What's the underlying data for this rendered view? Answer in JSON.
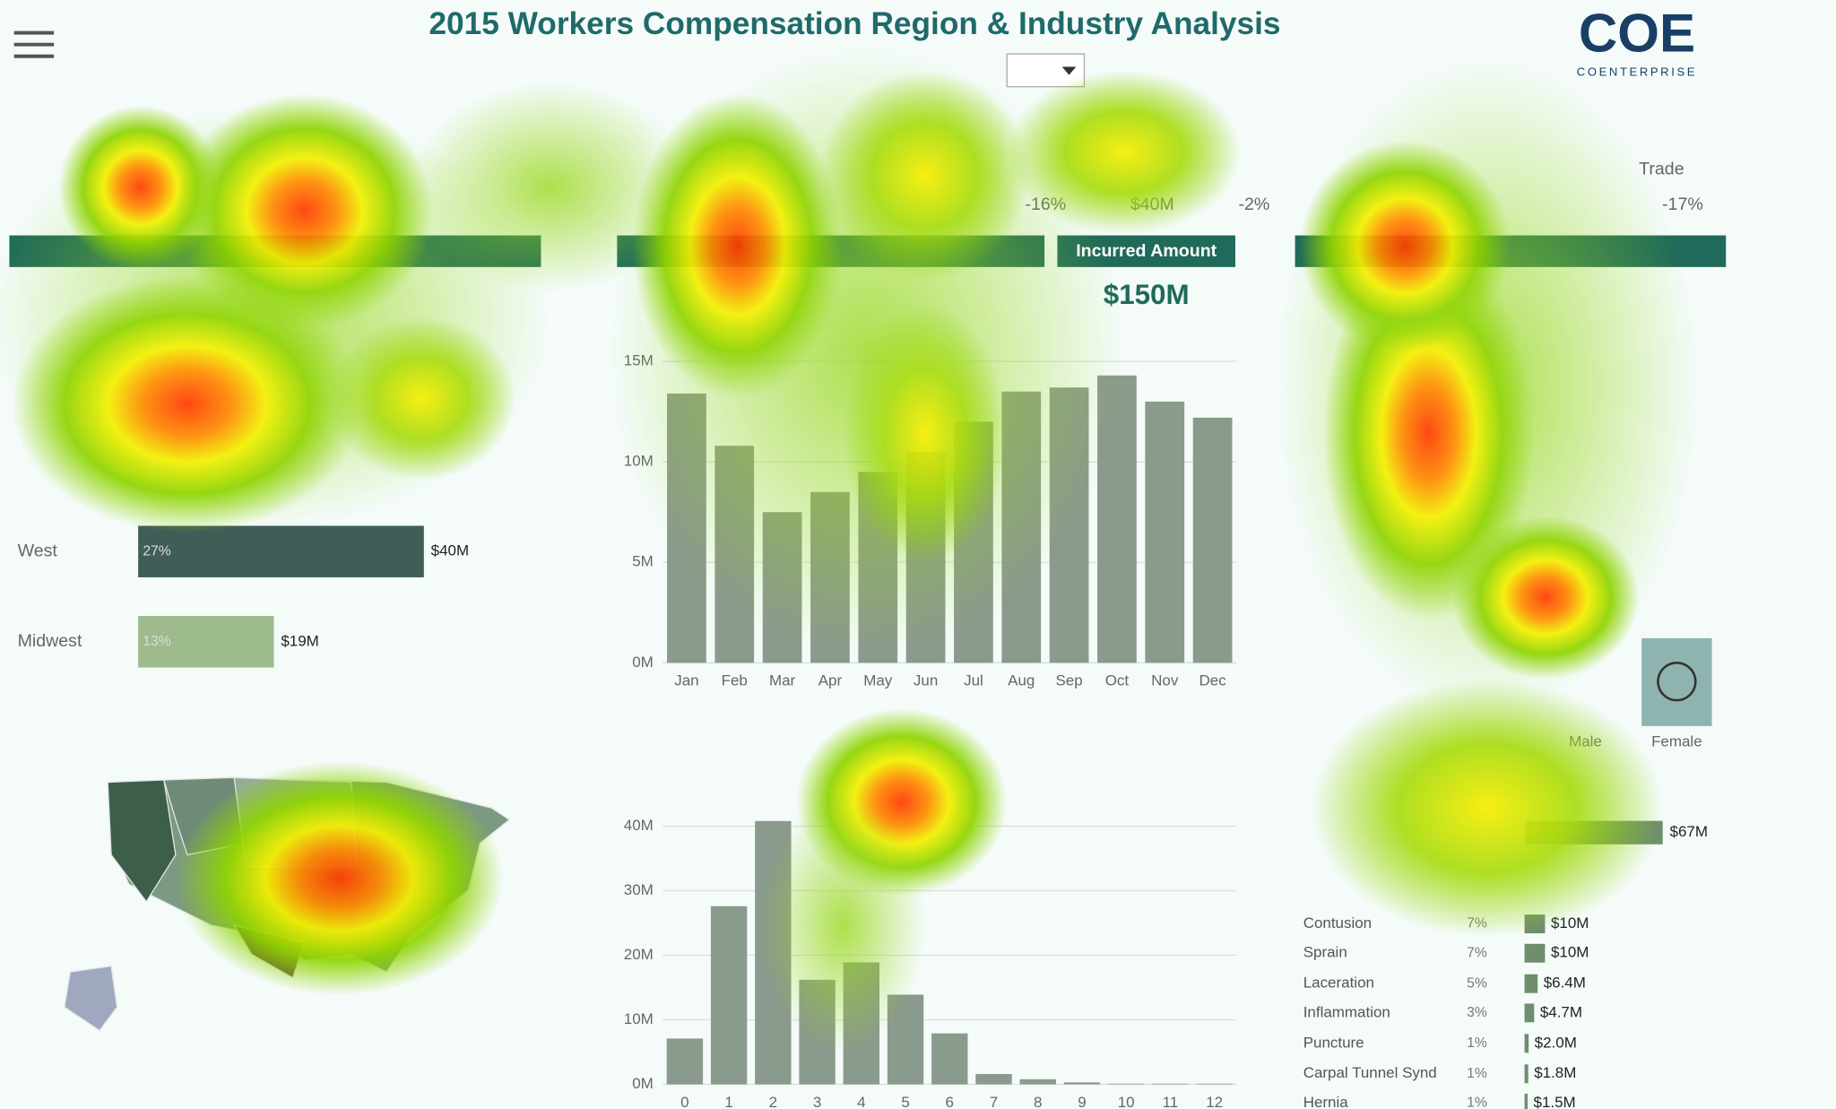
{
  "header": {
    "title": "2015 Workers Compensation Region & Industry Analysis",
    "logo": "COE",
    "logo_sub": "COENTERPRISE"
  },
  "kpis": [
    "-16%",
    "$40M",
    "-2%",
    "Trade",
    "-17%"
  ],
  "incurred": {
    "label": "Incurred Amount",
    "value": "$150M"
  },
  "monthly": {
    "type": "bar",
    "categories": [
      "Jan",
      "Feb",
      "Mar",
      "Apr",
      "May",
      "Jun",
      "Jul",
      "Aug",
      "Sep",
      "Oct",
      "Nov",
      "Dec"
    ],
    "values": [
      13.4,
      10.8,
      7.5,
      8.5,
      9.5,
      10.5,
      12.0,
      13.5,
      13.7,
      14.3,
      13.0,
      12.2
    ],
    "color": "#8a9a8c",
    "ylim": [
      0,
      15.5
    ],
    "yticks": [
      {
        "value": 0,
        "label": "0M"
      },
      {
        "value": 5,
        "label": "5M"
      },
      {
        "value": 10,
        "label": "10M"
      },
      {
        "value": 15,
        "label": "15M"
      }
    ]
  },
  "histogram": {
    "type": "bar",
    "categories": [
      "0",
      "1",
      "2",
      "3",
      "4",
      "5",
      "6",
      "7",
      "8",
      "9",
      "10",
      "11",
      "12"
    ],
    "values": [
      7.1,
      27.6,
      40.8,
      16.2,
      18.9,
      13.9,
      7.9,
      1.6,
      0.8,
      0.3,
      0.1,
      0.1,
      0.1
    ],
    "color": "#8a9a8c",
    "ylim": [
      0,
      41
    ],
    "yticks": [
      {
        "value": 0,
        "label": "0M"
      },
      {
        "value": 10,
        "label": "10M"
      },
      {
        "value": 20,
        "label": "20M"
      },
      {
        "value": 30,
        "label": "30M"
      },
      {
        "value": 40,
        "label": "40M"
      }
    ]
  },
  "regions": {
    "names": [
      "West",
      "Midwest"
    ],
    "pcts": [
      "27%",
      "13%"
    ],
    "values": [
      40,
      19
    ],
    "value_labels": [
      "$40M",
      "$19M"
    ],
    "colors": [
      "#3f5e58",
      "#9dbb8c"
    ]
  },
  "injuries": {
    "names": [
      null,
      "Contusion",
      "Sprain",
      "Laceration",
      "Inflammation",
      "Puncture",
      "Carpal Tunnel Synd",
      "Hernia"
    ],
    "pcts": [
      null,
      "7%",
      "7%",
      "5%",
      "3%",
      "1%",
      "1%",
      "1%"
    ],
    "values": [
      67,
      10,
      10,
      6.4,
      4.7,
      2.0,
      1.8,
      1.5
    ],
    "value_labels": [
      "$67M",
      "$10M",
      "$10M",
      "$6.4M",
      "$4.7M",
      "$2.0M",
      "$1.8M",
      "$1.5M"
    ],
    "color": "#6e8e6e"
  },
  "gender": [
    "Male",
    "Female"
  ]
}
